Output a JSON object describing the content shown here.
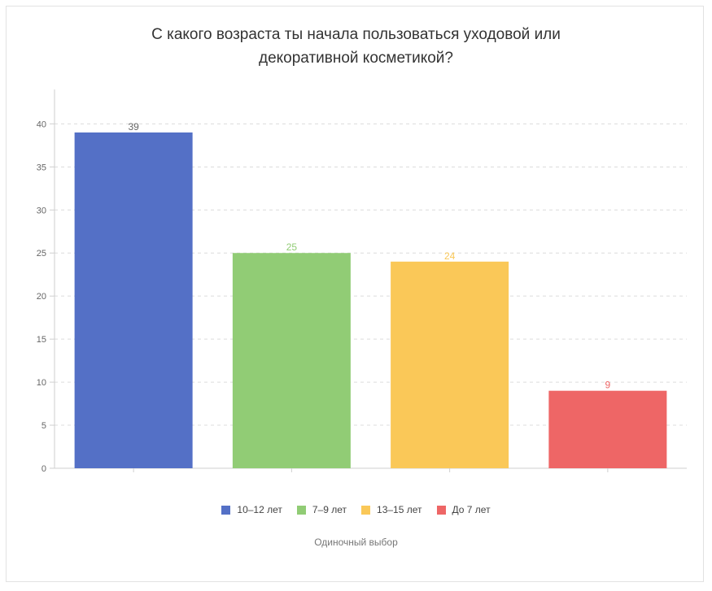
{
  "chart_data": {
    "type": "bar",
    "title_lines": [
      "С какого возраста ты начала пользоваться уходовой или",
      "декоративной косметикой?"
    ],
    "categories": [
      "10–12 лет",
      "7–9 лет",
      "13–15 лет",
      "До 7 лет"
    ],
    "values": [
      39,
      25,
      24,
      9
    ],
    "colors": [
      "#5470c6",
      "#91cc75",
      "#fac858",
      "#ee6666"
    ],
    "yticks": [
      0,
      5,
      10,
      15,
      20,
      25,
      30,
      35,
      40
    ],
    "ylim": [
      0,
      44
    ],
    "grid": true,
    "legend_position": "bottom-center",
    "footnote": "Одиночный выбор"
  }
}
